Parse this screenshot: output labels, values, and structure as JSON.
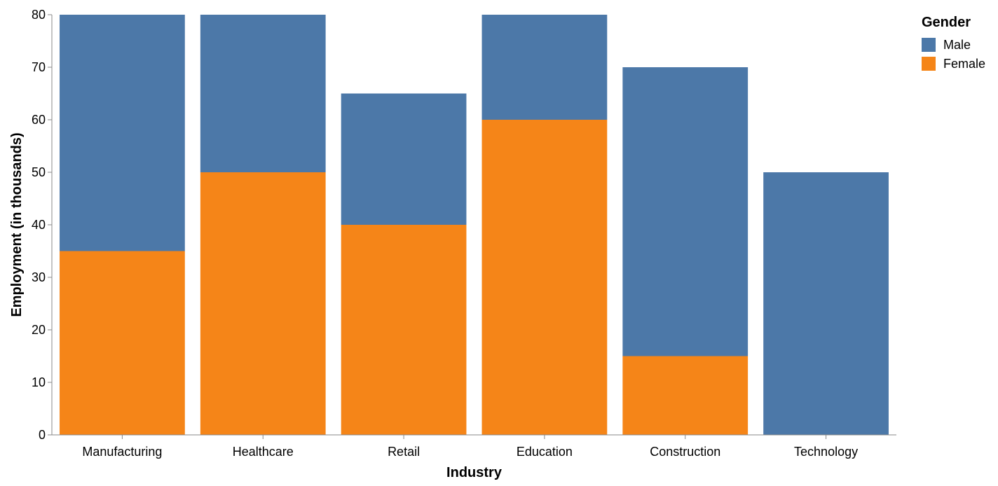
{
  "chart_data": {
    "type": "bar",
    "stacked": true,
    "xlabel": "Industry",
    "ylabel": "Employment (in thousands)",
    "ylim": [
      0,
      80
    ],
    "yticks": [
      0,
      10,
      20,
      30,
      40,
      50,
      60,
      70,
      80
    ],
    "categories": [
      "Manufacturing",
      "Healthcare",
      "Retail",
      "Education",
      "Construction",
      "Technology"
    ],
    "series": [
      {
        "name": "Female",
        "color": "#f58518",
        "values": [
          35,
          50,
          40,
          60,
          15,
          0
        ]
      },
      {
        "name": "Male",
        "color": "#4c78a8",
        "values": [
          45,
          30,
          25,
          20,
          55,
          50
        ]
      }
    ],
    "legend": {
      "title": "Gender",
      "position": "top-right",
      "entries": [
        {
          "name": "Male",
          "color": "#4c78a8"
        },
        {
          "name": "Female",
          "color": "#f58518"
        }
      ]
    },
    "grid": false
  }
}
